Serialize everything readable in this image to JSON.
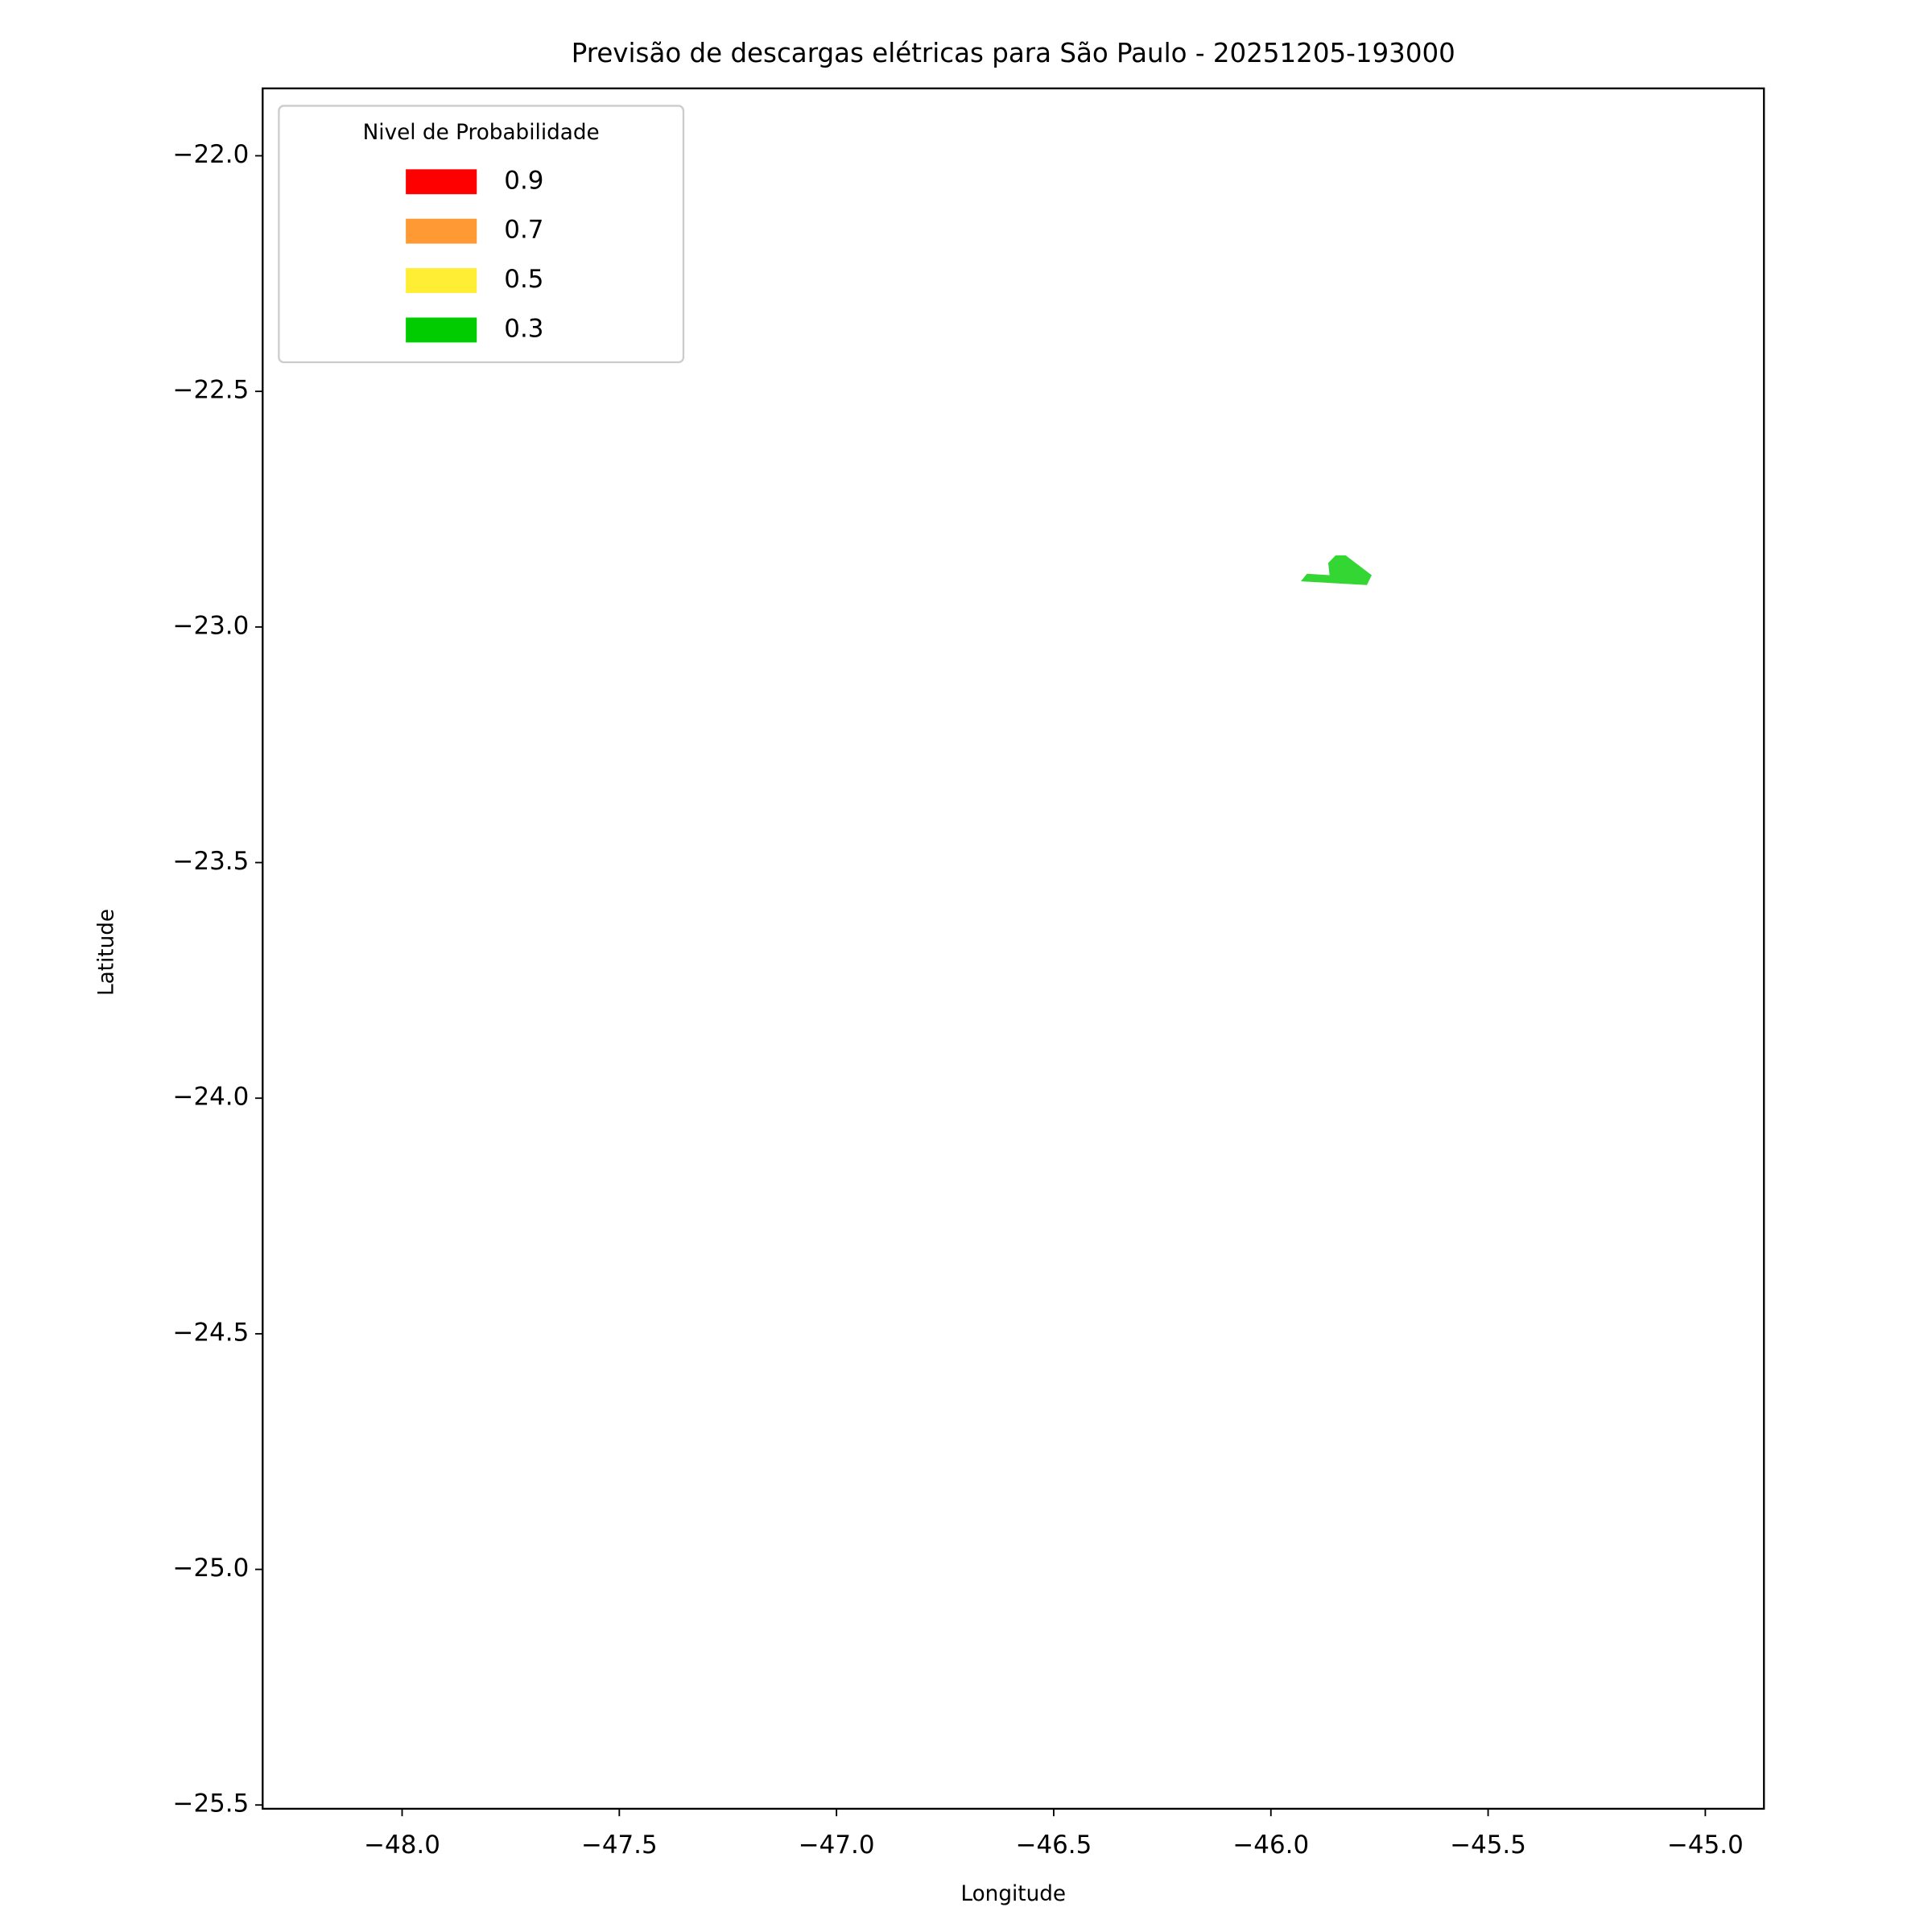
{
  "chart_data": {
    "type": "map",
    "title": "Previsão de descargas elétricas para São Paulo - 20251205-193000",
    "xlabel": "Longitude",
    "ylabel": "Latitude",
    "xlim": [
      -48.321,
      -44.865
    ],
    "ylim": [
      -25.508,
      -21.857
    ],
    "xticks": [
      {
        "value": -48.0,
        "label": "−48.0"
      },
      {
        "value": -47.5,
        "label": "−47.5"
      },
      {
        "value": -47.0,
        "label": "−47.0"
      },
      {
        "value": -46.5,
        "label": "−46.5"
      },
      {
        "value": -46.0,
        "label": "−46.0"
      },
      {
        "value": -45.5,
        "label": "−45.5"
      },
      {
        "value": -45.0,
        "label": "−45.0"
      }
    ],
    "yticks": [
      {
        "value": -22.0,
        "label": "−22.0"
      },
      {
        "value": -22.5,
        "label": "−22.5"
      },
      {
        "value": -23.0,
        "label": "−23.0"
      },
      {
        "value": -23.5,
        "label": "−23.5"
      },
      {
        "value": -24.0,
        "label": "−24.0"
      },
      {
        "value": -24.5,
        "label": "−24.5"
      },
      {
        "value": -25.0,
        "label": "−25.0"
      },
      {
        "value": -25.5,
        "label": "−25.5"
      }
    ],
    "legend": {
      "title": "Nivel de Probabilidade",
      "loc": "upper left",
      "levels": [
        0.9,
        0.7,
        0.5,
        0.3
      ],
      "colors": [
        "#ff0000",
        "#ff9933",
        "#ffee33",
        "#00cc00"
      ]
    },
    "series": [
      {
        "color": "#33d633",
        "x": [
          -45.931,
          -45.917,
          -45.865,
          -45.868,
          -45.851,
          -45.828,
          -45.768,
          -45.779
        ],
        "y": [
          -22.903,
          -22.887,
          -22.89,
          -22.864,
          -22.848,
          -22.848,
          -22.89,
          -22.911
        ]
      }
    ]
  }
}
